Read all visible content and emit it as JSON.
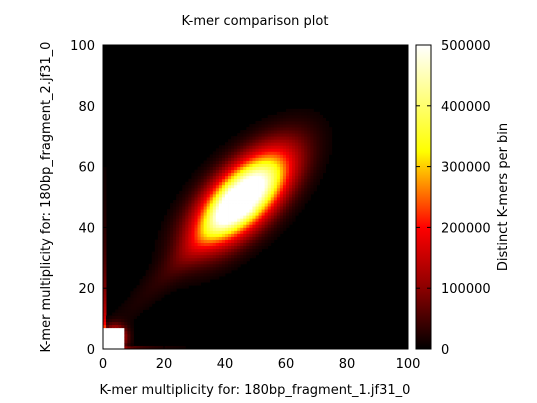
{
  "chart_data": {
    "type": "heatmap",
    "title": "K-mer comparison plot",
    "xlabel": "K-mer multiplicity for: 180bp_fragment_1.jf31_0",
    "ylabel": "K-mer multiplicity for: 180bp_fragment_2.jf31_0",
    "xlim": [
      0,
      100
    ],
    "ylim": [
      0,
      100
    ],
    "x_ticks": [
      "0",
      "20",
      "40",
      "60",
      "80",
      "100"
    ],
    "y_ticks": [
      "0",
      "20",
      "40",
      "60",
      "80",
      "100"
    ],
    "colorbar": {
      "label": "Distinct K-mers per bin",
      "range": [
        0,
        500000
      ],
      "ticks": [
        "0",
        "100000",
        "200000",
        "300000",
        "400000",
        "500000"
      ],
      "colors": [
        "#000000",
        "#8b0000",
        "#ff0000",
        "#ffff00",
        "#ffffff"
      ]
    },
    "grid": false,
    "regions": [
      {
        "name": "main-cluster",
        "x": 46,
        "y": 50,
        "peak": 500000
      },
      {
        "name": "low-count-corner",
        "x": 3,
        "y": 3,
        "peak": 500000
      },
      {
        "name": "y-axis-strip",
        "x": 0.5,
        "y": 10,
        "peak": 450000
      },
      {
        "name": "x-axis-strip",
        "x": 15,
        "y": 0.5,
        "peak": 150000
      }
    ]
  }
}
